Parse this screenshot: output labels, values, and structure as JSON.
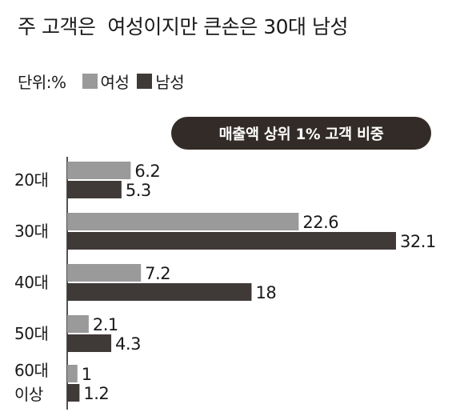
{
  "title": "주 고객은  여성이지만 큰손은 30대 남성",
  "unit_label": "단위:%",
  "colors": {
    "female": "#9a9a9a",
    "male": "#3f3a37",
    "pill_bg": "#332b27",
    "axis": "#1a1a1a"
  },
  "chart_data": {
    "type": "bar",
    "orientation": "horizontal",
    "title": "주 고객은  여성이지만 큰손은 30대 남성",
    "subtitle": "매출액 상위 1% 고객 비중",
    "unit": "%",
    "categories": [
      [
        "20대"
      ],
      [
        "30대"
      ],
      [
        "40대"
      ],
      [
        "50대"
      ],
      [
        "60대",
        "이상"
      ]
    ],
    "series": [
      {
        "name": "여성",
        "values": [
          6.2,
          22.6,
          7.2,
          2.1,
          1
        ],
        "labels": [
          "6.2",
          "22.6",
          "7.2",
          "2.1",
          "1"
        ]
      },
      {
        "name": "남성",
        "values": [
          5.3,
          32.1,
          18,
          4.3,
          1.2
        ],
        "labels": [
          "5.3",
          "32.1",
          "18",
          "4.3",
          "1.2"
        ]
      }
    ],
    "xlim": [
      0,
      32.1
    ],
    "grid": false,
    "legend_position": "top-left"
  }
}
